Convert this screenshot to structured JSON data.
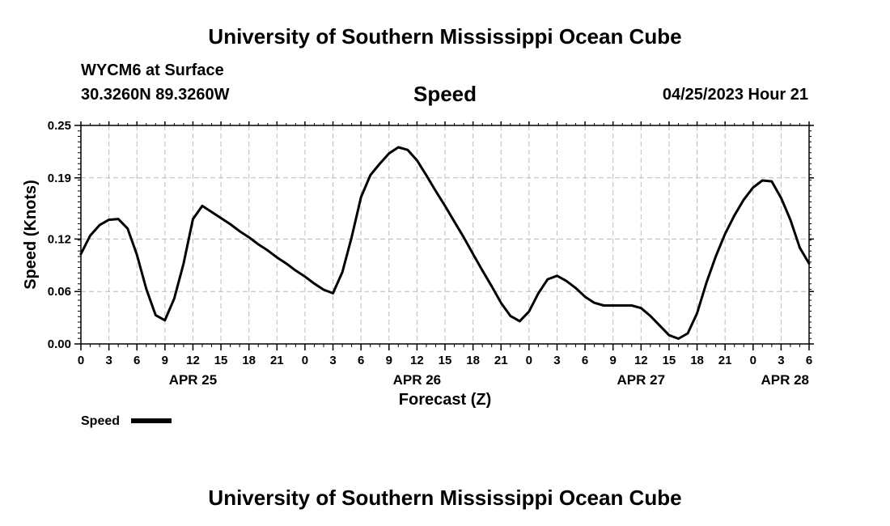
{
  "header": {
    "top_title": "University of Southern Mississippi Ocean Cube",
    "station_name": "WYCM6 at Surface",
    "station_coords": "30.3260N  89.3260W",
    "variable_title": "Speed",
    "forecast_time": "04/25/2023 Hour 21",
    "bottom_title": "University of Southern Mississippi Ocean Cube"
  },
  "colors": {
    "line": "#000000",
    "grid": "#bbbbbb",
    "background": "#ffffff"
  },
  "chart_data": {
    "type": "line",
    "title": "Speed",
    "xlabel": "Forecast (Z)",
    "ylabel": "Speed (Knots)",
    "ylim": [
      0,
      0.25
    ],
    "xlim": [
      0,
      78
    ],
    "yticks": [
      0.0,
      0.06,
      0.12,
      0.19,
      0.25
    ],
    "ytick_labels": [
      "0.00",
      "0.06",
      "0.12",
      "0.19",
      "0.25"
    ],
    "xtick_labels": [
      "0",
      "3",
      "6",
      "9",
      "12",
      "15",
      "18",
      "21",
      "0",
      "3",
      "6",
      "9",
      "12",
      "15",
      "18",
      "21",
      "0",
      "3",
      "6",
      "9",
      "12",
      "15",
      "18",
      "21",
      "0",
      "3",
      "6"
    ],
    "date_labels": [
      {
        "label": "APR 25",
        "x": 12
      },
      {
        "label": "APR 26",
        "x": 36
      },
      {
        "label": "APR 27",
        "x": 60
      },
      {
        "label": "APR 28",
        "x": 78
      }
    ],
    "grid": true,
    "legend": {
      "label": "Speed",
      "placement": "bottom-left"
    },
    "series": [
      {
        "name": "Speed",
        "x": [
          0,
          1,
          2,
          3,
          4,
          5,
          6,
          7,
          8,
          9,
          10,
          11,
          12,
          13,
          14,
          15,
          16,
          17,
          18,
          19,
          20,
          21,
          22,
          23,
          24,
          25,
          26,
          27,
          28,
          29,
          30,
          31,
          32,
          33,
          34,
          35,
          36,
          37,
          38,
          39,
          40,
          41,
          42,
          43,
          44,
          45,
          46,
          47,
          48,
          49,
          50,
          51,
          52,
          53,
          54,
          55,
          56,
          57,
          58,
          59,
          60,
          61,
          62,
          63,
          64,
          65,
          66,
          67,
          68,
          69,
          70,
          71,
          72,
          73,
          74,
          75,
          76,
          77,
          78
        ],
        "values": [
          0.103,
          0.124,
          0.136,
          0.142,
          0.143,
          0.132,
          0.102,
          0.063,
          0.033,
          0.027,
          0.052,
          0.092,
          0.143,
          0.158,
          0.151,
          0.144,
          0.137,
          0.129,
          0.122,
          0.114,
          0.107,
          0.099,
          0.092,
          0.084,
          0.077,
          0.069,
          0.062,
          0.058,
          0.082,
          0.122,
          0.168,
          0.193,
          0.206,
          0.218,
          0.225,
          0.222,
          0.21,
          0.193,
          0.175,
          0.158,
          0.14,
          0.122,
          0.103,
          0.084,
          0.066,
          0.047,
          0.032,
          0.026,
          0.037,
          0.058,
          0.074,
          0.078,
          0.072,
          0.064,
          0.054,
          0.047,
          0.044,
          0.044,
          0.044,
          0.044,
          0.041,
          0.032,
          0.021,
          0.01,
          0.006,
          0.012,
          0.035,
          0.07,
          0.1,
          0.126,
          0.147,
          0.165,
          0.179,
          0.187,
          0.186,
          0.167,
          0.142,
          0.11,
          0.092
        ]
      }
    ]
  }
}
